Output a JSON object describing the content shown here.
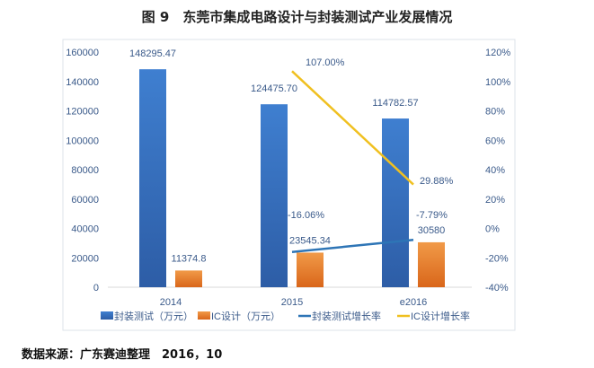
{
  "title": "图 9　东莞市集成电路设计与封装测试产业发展情况",
  "source": "数据来源：广东赛迪整理　2016，10",
  "chart_data": {
    "type": "bar",
    "title": "图 9　东莞市集成电路设计与封装测试产业发展情况",
    "categories": [
      "2014",
      "2015",
      "e2016"
    ],
    "series": [
      {
        "name": "封装测试（万元）",
        "kind": "bar",
        "axis": "left",
        "color": "#3a72c4",
        "values": [
          148295.47,
          124475.7,
          114782.57
        ],
        "labels": [
          "148295.47",
          "124475.70",
          "114782.57"
        ]
      },
      {
        "name": "IC设计（万元）",
        "kind": "bar",
        "axis": "left",
        "color": "#e67e22",
        "values": [
          11374.8,
          23545.34,
          30580
        ],
        "labels": [
          "11374.8",
          "23545.34",
          "30580"
        ]
      },
      {
        "name": "封装测试增长率",
        "kind": "line",
        "axis": "right",
        "color": "#2e75b6",
        "values": [
          null,
          -16.06,
          -7.79
        ],
        "labels": [
          "",
          "-16.06%",
          "-7.79%"
        ]
      },
      {
        "name": "IC设计增长率",
        "kind": "line",
        "axis": "right",
        "color": "#f0c020",
        "values": [
          null,
          107.0,
          29.88
        ],
        "labels": [
          "",
          "107.00%",
          "29.88%"
        ]
      }
    ],
    "ylim": [
      0,
      160000
    ],
    "yticks": [
      "0",
      "20000",
      "40000",
      "60000",
      "80000",
      "100000",
      "120000",
      "140000",
      "160000"
    ],
    "y2lim": [
      -40,
      120
    ],
    "y2ticks": [
      "-40%",
      "-20%",
      "0%",
      "20%",
      "40%",
      "60%",
      "80%",
      "100%",
      "120%"
    ],
    "grid": false,
    "legend": "bottom"
  }
}
